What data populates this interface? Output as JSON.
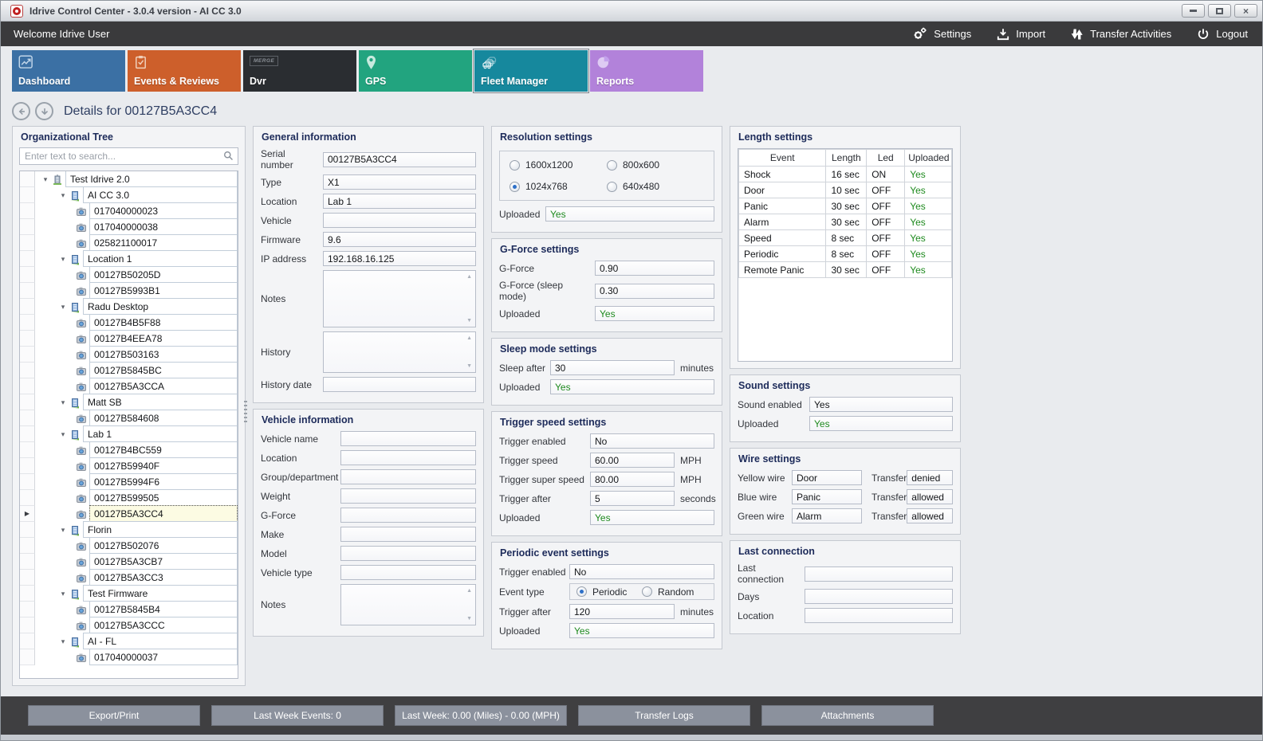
{
  "window": {
    "title": "Idrive Control Center - 3.0.4 version - AI CC 3.0"
  },
  "topbar": {
    "welcome": "Welcome Idrive User",
    "actions": [
      {
        "label": "Settings",
        "icon": "gear-icon"
      },
      {
        "label": "Import",
        "icon": "import-icon"
      },
      {
        "label": "Transfer Activities",
        "icon": "transfer-arrows-icon"
      },
      {
        "label": "Logout",
        "icon": "power-icon"
      }
    ]
  },
  "tabs": [
    {
      "label": "Dashboard",
      "icon": "dashboard-chart-icon",
      "color": "#3b70a4",
      "selected": false
    },
    {
      "label": "Events & Reviews",
      "icon": "clipboard-check-icon",
      "color": "#cd5f2b",
      "selected": false
    },
    {
      "label": "Dvr",
      "icon": "merge-logo-icon",
      "badge": "MERGE",
      "color": "#2a2d31",
      "selected": false
    },
    {
      "label": "GPS",
      "icon": "map-pin-icon",
      "color": "#22a47f",
      "selected": false
    },
    {
      "label": "Fleet Manager",
      "icon": "cars-icon",
      "color": "#16889d",
      "selected": true
    },
    {
      "label": "Reports",
      "icon": "pie-chart-icon",
      "color": "#b282da",
      "selected": false
    }
  ],
  "details": {
    "title": "Details for 00127B5A3CC4"
  },
  "tree": {
    "header": "Organizational Tree",
    "search_placeholder": "Enter text to search...",
    "items": [
      {
        "label": "Test Idrive 2.0",
        "type": "root",
        "level": 0
      },
      {
        "label": "AI CC 3.0",
        "type": "group",
        "level": 1
      },
      {
        "label": "017040000023",
        "type": "device",
        "level": 2
      },
      {
        "label": "017040000038",
        "type": "device",
        "level": 2
      },
      {
        "label": "025821100017",
        "type": "device",
        "level": 2
      },
      {
        "label": "Location 1",
        "type": "group",
        "level": 1
      },
      {
        "label": "00127B50205D",
        "type": "device",
        "level": 2
      },
      {
        "label": "00127B5993B1",
        "type": "device",
        "level": 2
      },
      {
        "label": "Radu Desktop",
        "type": "group",
        "level": 1
      },
      {
        "label": "00127B4B5F88",
        "type": "device",
        "level": 2
      },
      {
        "label": "00127B4EEA78",
        "type": "device",
        "level": 2
      },
      {
        "label": "00127B503163",
        "type": "device",
        "level": 2
      },
      {
        "label": "00127B5845BC",
        "type": "device",
        "level": 2
      },
      {
        "label": "00127B5A3CCA",
        "type": "device",
        "level": 2
      },
      {
        "label": "Matt SB",
        "type": "group",
        "level": 1
      },
      {
        "label": "00127B584608",
        "type": "device",
        "level": 2
      },
      {
        "label": "Lab 1",
        "type": "group",
        "level": 1
      },
      {
        "label": "00127B4BC559",
        "type": "device",
        "level": 2
      },
      {
        "label": "00127B59940F",
        "type": "device",
        "level": 2
      },
      {
        "label": "00127B5994F6",
        "type": "device",
        "level": 2
      },
      {
        "label": "00127B599505",
        "type": "device",
        "level": 2
      },
      {
        "label": "00127B5A3CC4",
        "type": "device",
        "level": 2,
        "selected": true
      },
      {
        "label": "Florin",
        "type": "group",
        "level": 1
      },
      {
        "label": "00127B502076",
        "type": "device",
        "level": 2
      },
      {
        "label": "00127B5A3CB7",
        "type": "device",
        "level": 2
      },
      {
        "label": "00127B5A3CC3",
        "type": "device",
        "level": 2
      },
      {
        "label": "Test Firmware",
        "type": "group",
        "level": 1
      },
      {
        "label": "00127B5845B4",
        "type": "device",
        "level": 2
      },
      {
        "label": "00127B5A3CCC",
        "type": "device",
        "level": 2
      },
      {
        "label": "AI - FL",
        "type": "group",
        "level": 1
      },
      {
        "label": "017040000037",
        "type": "device",
        "level": 2
      }
    ]
  },
  "panels": {
    "general": {
      "title": "General information",
      "fields": [
        {
          "label": "Serial number",
          "value": "00127B5A3CC4"
        },
        {
          "label": "Type",
          "value": "X1"
        },
        {
          "label": "Location",
          "value": "Lab 1"
        },
        {
          "label": "Vehicle",
          "value": ""
        },
        {
          "label": "Firmware",
          "value": "9.6"
        },
        {
          "label": "IP address",
          "value": "192.168.16.125"
        },
        {
          "label": "Notes",
          "kind": "textarea"
        },
        {
          "label": "History",
          "kind": "textarea"
        },
        {
          "label": "History date",
          "value": ""
        }
      ]
    },
    "vehicle": {
      "title": "Vehicle information",
      "fields": [
        {
          "label": "Vehicle name",
          "value": ""
        },
        {
          "label": "Location",
          "value": ""
        },
        {
          "label": "Group/department",
          "value": ""
        },
        {
          "label": "Weight",
          "value": ""
        },
        {
          "label": "G-Force",
          "value": ""
        },
        {
          "label": "Make",
          "value": ""
        },
        {
          "label": "Model",
          "value": ""
        },
        {
          "label": "Vehicle type",
          "value": ""
        },
        {
          "label": "Notes",
          "kind": "textarea"
        }
      ]
    },
    "resolution": {
      "title": "Resolution settings",
      "radio_options": [
        {
          "label": "1600x1200",
          "selected": false
        },
        {
          "label": "800x600",
          "selected": false
        },
        {
          "label": "1024x768",
          "selected": true
        },
        {
          "label": "640x480",
          "selected": false
        }
      ],
      "fields": [
        {
          "label": "Uploaded",
          "kind": "status",
          "value": "Yes"
        }
      ]
    },
    "gforce": {
      "title": "G-Force settings",
      "fields": [
        {
          "label": "G-Force",
          "value": "0.90"
        },
        {
          "label": "G-Force (sleep mode)",
          "value": "0.30"
        },
        {
          "label": "Uploaded",
          "kind": "status",
          "value": "Yes"
        }
      ]
    },
    "sleep": {
      "title": "Sleep mode settings",
      "fields": [
        {
          "label": "Sleep after",
          "value": "30",
          "unit": "minutes"
        },
        {
          "label": "Uploaded",
          "kind": "status",
          "value": "Yes"
        }
      ]
    },
    "trigger_speed": {
      "title": "Trigger speed settings",
      "fields": [
        {
          "label": "Trigger enabled",
          "value": "No"
        },
        {
          "label": "Trigger speed",
          "value": "60.00",
          "unit": "MPH"
        },
        {
          "label": "Trigger super speed",
          "value": "80.00",
          "unit": "MPH"
        },
        {
          "label": "Trigger after",
          "value": "5",
          "unit": "seconds"
        },
        {
          "label": "Uploaded",
          "kind": "status",
          "value": "Yes"
        }
      ]
    },
    "periodic": {
      "title": "Periodic event settings",
      "fields": [
        {
          "label": "Trigger enabled",
          "value": "No"
        },
        {
          "label": "Event type",
          "kind": "radios",
          "options": [
            {
              "label": "Periodic",
              "selected": true
            },
            {
              "label": "Random",
              "selected": false
            }
          ]
        },
        {
          "label": "Trigger after",
          "value": "120",
          "unit": "minutes"
        },
        {
          "label": "Uploaded",
          "kind": "status",
          "value": "Yes"
        }
      ]
    },
    "length": {
      "title": "Length settings",
      "table": {
        "headers": [
          "Event",
          "Length",
          "Led",
          "Uploaded"
        ],
        "rows": [
          [
            "Shock",
            "16 sec",
            "ON",
            "Yes"
          ],
          [
            "Door",
            "10 sec",
            "OFF",
            "Yes"
          ],
          [
            "Panic",
            "30 sec",
            "OFF",
            "Yes"
          ],
          [
            "Alarm",
            "30 sec",
            "OFF",
            "Yes"
          ],
          [
            "Speed",
            "8 sec",
            "OFF",
            "Yes"
          ],
          [
            "Periodic",
            "8 sec",
            "OFF",
            "Yes"
          ],
          [
            "Remote Panic",
            "30 sec",
            "OFF",
            "Yes"
          ]
        ]
      }
    },
    "sound": {
      "title": "Sound settings",
      "fields": [
        {
          "label": "Sound enabled",
          "value": "Yes"
        },
        {
          "label": "Uploaded",
          "kind": "status",
          "value": "Yes"
        }
      ]
    },
    "wire": {
      "title": "Wire settings",
      "rows": [
        {
          "label": "Yellow wire",
          "value": "Door",
          "transfer_label": "Transfer",
          "transfer": "denied"
        },
        {
          "label": "Blue wire",
          "value": "Panic",
          "transfer_label": "Transfer",
          "transfer": "allowed"
        },
        {
          "label": "Green wire",
          "value": "Alarm",
          "transfer_label": "Transfer",
          "transfer": "allowed"
        }
      ]
    },
    "last_connection": {
      "title": "Last connection",
      "fields": [
        {
          "label": "Last connection",
          "value": ""
        },
        {
          "label": "Days",
          "value": ""
        },
        {
          "label": "Location",
          "value": ""
        }
      ]
    }
  },
  "bottom": {
    "buttons": [
      "Export/Print",
      "Last Week Events: 0",
      "Last Week: 0.00 (Miles) - 0.00 (MPH)",
      "Transfer Logs",
      "Attachments"
    ]
  },
  "colors": {
    "status_green": "#1e8a1e",
    "selected_row_bg": "#fcfbe3"
  }
}
